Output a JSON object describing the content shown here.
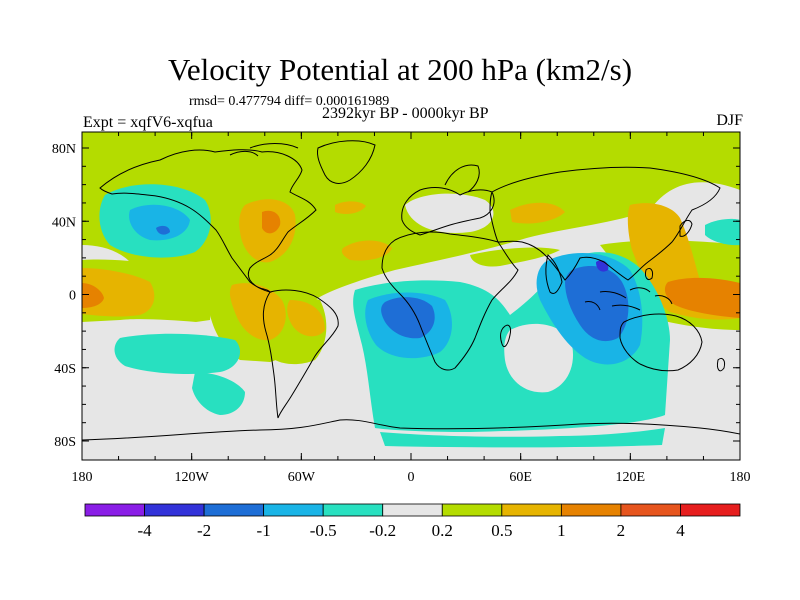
{
  "title": "Velocity Potential at 200 hPa (km2/s)",
  "stats": "rmsd= 0.477794 diff= 0.000161989",
  "expt": "Expt = xqfV6-xqfua",
  "period": "2392kyr BP - 0000kyr BP",
  "season": "DJF",
  "axes": {
    "y_ticks": [
      "80N",
      "40N",
      "0",
      "40S",
      "80S"
    ],
    "x_ticks": [
      "180",
      "120W",
      "60W",
      "0",
      "60E",
      "120E",
      "180"
    ]
  },
  "colorbar": {
    "colors": [
      "#8a1ee6",
      "#3232d9",
      "#1e6ed6",
      "#19b4e6",
      "#28e0c0",
      "#e6e6e6",
      "#b4dc00",
      "#e6b400",
      "#e68200",
      "#e6551e",
      "#e61e1e"
    ],
    "labels": [
      "-4",
      "-2",
      "-1",
      "-0.5",
      "-0.2",
      "0.2",
      "0.5",
      "1",
      "2",
      "4"
    ]
  }
}
